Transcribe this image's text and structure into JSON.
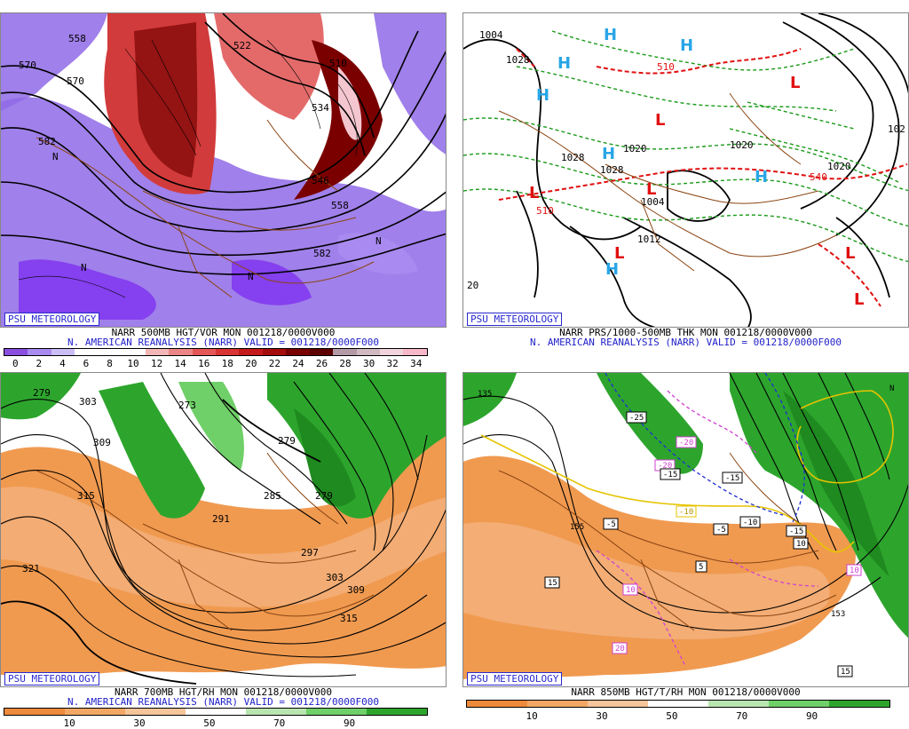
{
  "panels": [
    {
      "badge": "PSU METEOROLOGY",
      "caption1": "NARR 500MB HGT/VOR MON 001218/0000V000",
      "caption2": "N. AMERICAN REANALYSIS (NARR) VALID = 001218/0000F000",
      "contour_labels": [
        "558",
        "570",
        "582",
        "522",
        "510",
        "534",
        "546",
        "558",
        "570",
        "582",
        "N",
        "N",
        "N",
        "N"
      ],
      "colorbar_ticks": [
        "0",
        "2",
        "4",
        "6",
        "8",
        "10",
        "12",
        "14",
        "16",
        "18",
        "20",
        "22",
        "24",
        "26",
        "28",
        "30",
        "32",
        "34"
      ],
      "colorbar_colors": [
        "#8a4fe0",
        "#a98af0",
        "#cbbef6",
        "#ffffff",
        "#ffffff",
        "#ffffff",
        "#f4b7b7",
        "#ec8585",
        "#e55757",
        "#d83434",
        "#c41a1a",
        "#a50d0d",
        "#7a0000",
        "#5c0000",
        "#b49aa6",
        "#d1b9c2",
        "#f1d3dc",
        "#f7b8c8"
      ]
    },
    {
      "badge": "PSU METEOROLOGY",
      "caption1": "NARR PRS/1000-500MB THK MON 001218/0000V000",
      "caption2": "N. AMERICAN REANALYSIS (NARR) VALID = 001218/0000F000",
      "contour_labels": [
        "1004",
        "1028",
        "510",
        "1028",
        "1020",
        "1028",
        "1004",
        "1012",
        "1020",
        "510",
        "20",
        "1020",
        "102",
        "540"
      ],
      "high_low": [
        "H",
        "H",
        "H",
        "H",
        "H",
        "H",
        "H",
        "L",
        "L",
        "L",
        "L",
        "L",
        "L",
        "L"
      ]
    },
    {
      "badge": "PSU METEOROLOGY",
      "caption1": "NARR 700MB HGT/RH MON 001218/0000V000",
      "caption2": "N. AMERICAN REANALYSIS (NARR) VALID = 001218/0000F000",
      "contour_labels": [
        "303",
        "309",
        "315",
        "321",
        "279",
        "273",
        "285",
        "279",
        "291",
        "297",
        "303",
        "309",
        "315",
        "279"
      ],
      "colorbar_ticks": [
        "10",
        "30",
        "50",
        "70",
        "90"
      ],
      "colorbar_colors": [
        "#ee8a3c",
        "#f2a764",
        "#f6c59a",
        "#ffffff",
        "#b9e6b0",
        "#6fcf68",
        "#2da52d"
      ]
    },
    {
      "badge": "PSU METEOROLOGY",
      "caption1": "NARR 850MB HGT/T/RH MON 001218/0000V000",
      "caption2": "",
      "contour_labels": [
        "135",
        "-25",
        "-20",
        "-20",
        "-15",
        "-15",
        "-10",
        "-15",
        "-5",
        "-5",
        "-10",
        "155",
        "5",
        "15",
        "10",
        "10",
        "20",
        "15",
        "153",
        "10",
        "N"
      ],
      "colorbar_ticks": [
        "10",
        "30",
        "50",
        "70",
        "90"
      ],
      "colorbar_colors": [
        "#ee8a3c",
        "#f2a764",
        "#f6c59a",
        "#ffffff",
        "#b9e6b0",
        "#6fcf68",
        "#2da52d"
      ]
    }
  ]
}
